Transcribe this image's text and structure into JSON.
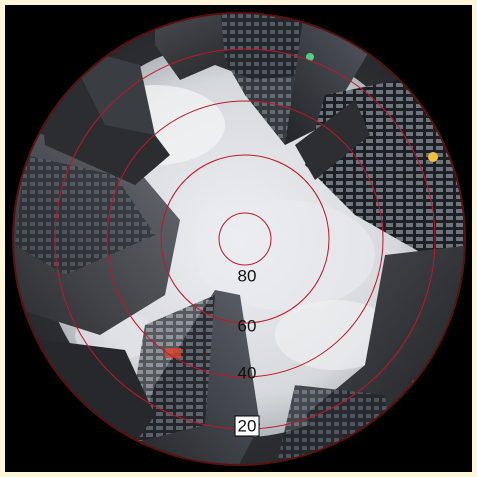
{
  "image": {
    "description_key": "fisheye-sky-view",
    "ring_color": "#c0162c",
    "sky_color": "#d9dcdf",
    "frame_color": "#000000",
    "page_background": "#fdf6d8"
  },
  "elevation_labels": [
    {
      "value": "80",
      "style": "plain"
    },
    {
      "value": "60",
      "style": "plain"
    },
    {
      "value": "40",
      "style": "plain"
    },
    {
      "value": "20",
      "style": "boxed"
    }
  ]
}
